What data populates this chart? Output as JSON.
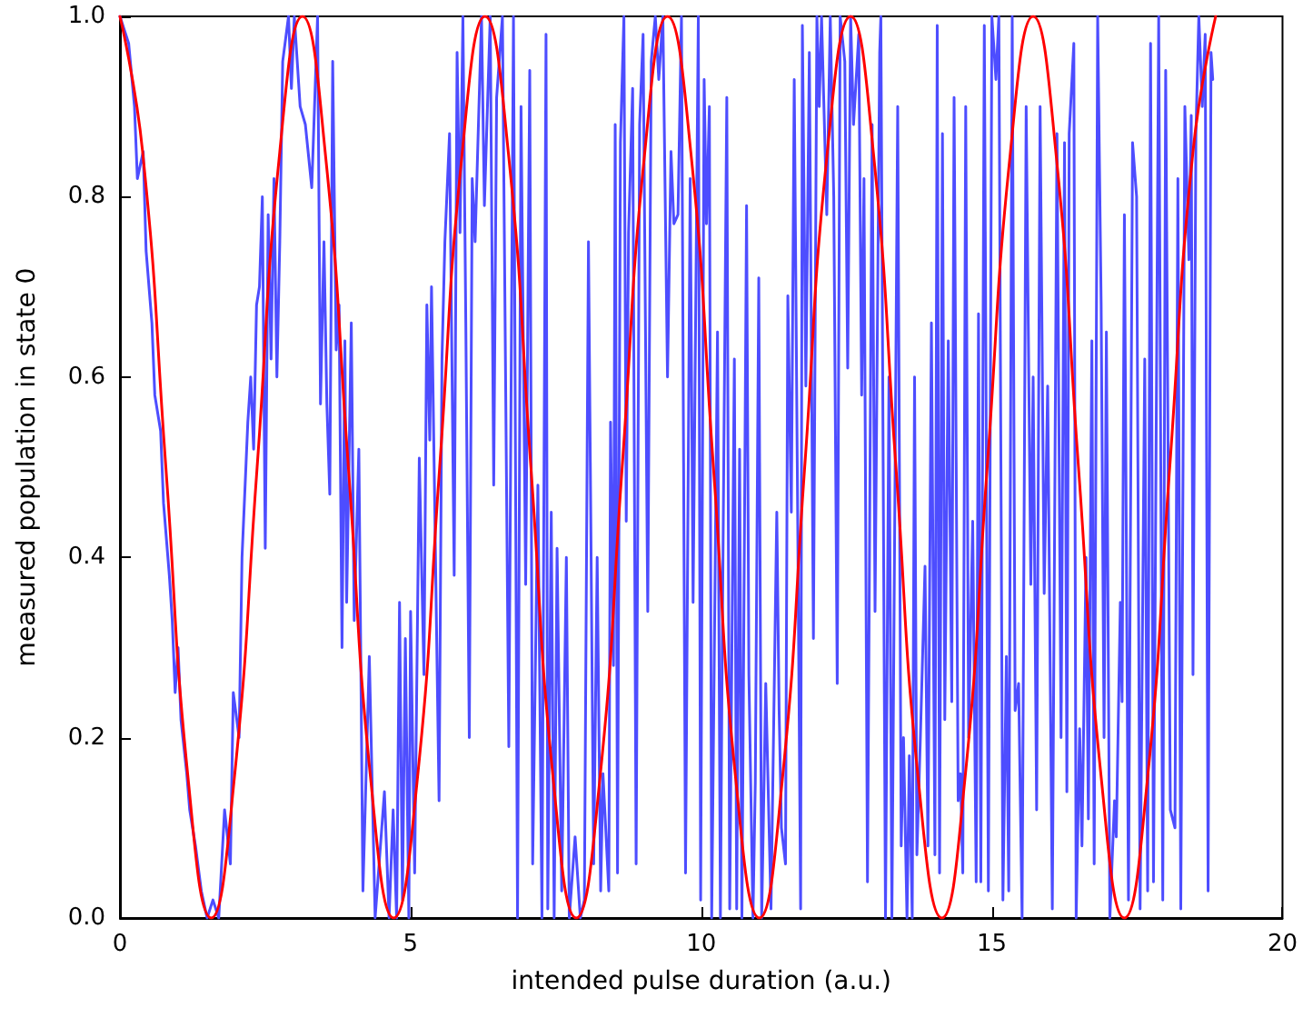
{
  "chart_data": {
    "type": "line",
    "xlabel": "intended pulse duration (a.u.)",
    "ylabel": "measured population in state 0",
    "xlim": [
      0,
      20
    ],
    "xticks": [
      0,
      5,
      10,
      15,
      20
    ],
    "ylim": [
      0,
      1
    ],
    "yticks": [
      {
        "value": 0,
        "label": "0.0"
      },
      {
        "value": 0.2,
        "label": "0.2"
      },
      {
        "value": 0.4,
        "label": "0.4"
      },
      {
        "value": 0.6,
        "label": "0.6"
      },
      {
        "value": 0.8,
        "label": "0.8"
      },
      {
        "value": 1,
        "label": "1.0"
      }
    ],
    "grid": false,
    "marker": "none",
    "line_style": "solid",
    "series": [
      {
        "color": "#4d4dff",
        "x": [
          0.0,
          0.15,
          0.25,
          0.3,
          0.4,
          0.45,
          0.55,
          0.6,
          0.7,
          0.75,
          0.85,
          0.9,
          0.95,
          1.0,
          1.05,
          1.15,
          1.2,
          1.3,
          1.4,
          1.5,
          1.6,
          1.7,
          1.8,
          1.9,
          1.95,
          2.05,
          2.1,
          2.2,
          2.25,
          2.3,
          2.35,
          2.4,
          2.45,
          2.5,
          2.55,
          2.6,
          2.65,
          2.7,
          2.75,
          2.8,
          2.9,
          2.95,
          3.0,
          3.1,
          3.19,
          3.3,
          3.4,
          3.45,
          3.51,
          3.56,
          3.61,
          3.66,
          3.72,
          3.77,
          3.82,
          3.87,
          3.9,
          3.98,
          4.03,
          4.11,
          4.18,
          4.29,
          4.39,
          4.55,
          4.63,
          4.7,
          4.76,
          4.81,
          4.86,
          4.91,
          4.97,
          5.0,
          5.07,
          5.15,
          5.23,
          5.28,
          5.33,
          5.36,
          5.49,
          5.54,
          5.59,
          5.67,
          5.75,
          5.8,
          5.85,
          5.9,
          5.95,
          6.01,
          6.06,
          6.11,
          6.22,
          6.27,
          6.37,
          6.43,
          6.48,
          6.58,
          6.69,
          6.77,
          6.84,
          6.9,
          6.98,
          7.05,
          7.1,
          7.19,
          7.26,
          7.33,
          7.36,
          7.42,
          7.47,
          7.52,
          7.6,
          7.68,
          7.73,
          7.83,
          7.92,
          7.99,
          8.06,
          8.15,
          8.21,
          8.27,
          8.31,
          8.41,
          8.44,
          8.49,
          8.52,
          8.56,
          8.61,
          8.67,
          8.71,
          8.75,
          8.82,
          8.88,
          8.94,
          9.0,
          9.08,
          9.14,
          9.21,
          9.27,
          9.34,
          9.42,
          9.48,
          9.53,
          9.6,
          9.66,
          9.73,
          9.81,
          9.86,
          9.95,
          9.99,
          10.05,
          10.09,
          10.14,
          10.18,
          10.28,
          10.33,
          10.36,
          10.44,
          10.49,
          10.57,
          10.61,
          10.66,
          10.7,
          10.78,
          10.82,
          10.89,
          10.93,
          10.99,
          11.04,
          11.11,
          11.2,
          11.3,
          11.34,
          11.38,
          11.45,
          11.49,
          11.55,
          11.6,
          11.66,
          11.71,
          11.74,
          11.8,
          11.86,
          11.93,
          11.99,
          12.03,
          12.07,
          12.16,
          12.22,
          12.28,
          12.34,
          12.39,
          12.47,
          12.52,
          12.57,
          12.62,
          12.71,
          12.76,
          12.8,
          12.86,
          12.94,
          12.99,
          13.07,
          13.09,
          13.17,
          13.23,
          13.28,
          13.38,
          13.44,
          13.48,
          13.54,
          13.58,
          13.63,
          13.67,
          13.71,
          13.77,
          13.85,
          13.9,
          13.96,
          14.02,
          14.06,
          14.1,
          14.15,
          14.19,
          14.25,
          14.31,
          14.35,
          14.42,
          14.46,
          14.5,
          14.55,
          14.6,
          14.67,
          14.73,
          14.77,
          14.81,
          14.87,
          14.94,
          15.0,
          15.07,
          15.12,
          15.19,
          15.25,
          15.29,
          15.35,
          15.4,
          15.46,
          15.52,
          15.59,
          15.67,
          15.71,
          15.77,
          15.83,
          15.9,
          15.96,
          16.04,
          16.12,
          16.19,
          16.25,
          16.29,
          16.33,
          16.41,
          16.45,
          16.51,
          16.55,
          16.62,
          16.66,
          16.72,
          16.76,
          16.82,
          16.88,
          16.93,
          16.97,
          17.03,
          17.11,
          17.14,
          17.21,
          17.24,
          17.28,
          17.35,
          17.42,
          17.49,
          17.55,
          17.63,
          17.68,
          17.73,
          17.78,
          17.87,
          17.94,
          17.99,
          18.07,
          18.15,
          18.2,
          18.25,
          18.32,
          18.39,
          18.43,
          18.46,
          18.51,
          18.56,
          18.62,
          18.67,
          18.72,
          18.77,
          18.8
        ],
        "values": [
          1.0,
          0.97,
          0.9,
          0.82,
          0.85,
          0.74,
          0.66,
          0.58,
          0.54,
          0.46,
          0.38,
          0.33,
          0.25,
          0.3,
          0.22,
          0.16,
          0.12,
          0.08,
          0.03,
          0.0,
          0.02,
          0.0,
          0.12,
          0.06,
          0.25,
          0.2,
          0.4,
          0.55,
          0.6,
          0.52,
          0.68,
          0.7,
          0.8,
          0.41,
          0.78,
          0.62,
          0.82,
          0.6,
          0.75,
          0.95,
          1.0,
          0.92,
          1.0,
          0.9,
          0.88,
          0.81,
          1.0,
          0.57,
          0.75,
          0.57,
          0.47,
          0.95,
          0.63,
          0.68,
          0.3,
          0.64,
          0.35,
          0.66,
          0.33,
          0.52,
          0.03,
          0.29,
          0.0,
          0.14,
          0.0,
          0.12,
          0.0,
          0.35,
          0.02,
          0.31,
          0.0,
          0.34,
          0.05,
          0.51,
          0.27,
          0.68,
          0.53,
          0.7,
          0.13,
          0.62,
          0.75,
          0.87,
          0.38,
          0.96,
          0.76,
          1.0,
          0.66,
          0.2,
          0.82,
          0.75,
          1.0,
          0.79,
          1.0,
          0.48,
          0.91,
          1.0,
          0.19,
          1.0,
          0.0,
          0.9,
          0.37,
          0.94,
          0.06,
          0.48,
          0.0,
          0.98,
          0.01,
          0.45,
          0.0,
          0.41,
          0.03,
          0.4,
          0.0,
          0.09,
          0.0,
          0.02,
          0.75,
          0.06,
          0.4,
          0.03,
          0.16,
          0.03,
          0.55,
          0.28,
          0.88,
          0.05,
          0.86,
          1.0,
          0.44,
          0.76,
          0.92,
          0.06,
          0.88,
          0.98,
          0.34,
          0.95,
          1.0,
          0.93,
          1.0,
          0.6,
          0.85,
          0.77,
          0.78,
          1.0,
          0.05,
          0.82,
          0.35,
          1.0,
          0.02,
          0.93,
          0.77,
          0.9,
          0.0,
          0.65,
          0.0,
          0.29,
          0.91,
          0.01,
          0.62,
          0.01,
          0.52,
          0.0,
          0.79,
          0.27,
          0.0,
          0.15,
          0.71,
          0.0,
          0.26,
          0.01,
          0.45,
          0.23,
          0.1,
          0.06,
          0.69,
          0.45,
          0.93,
          0.44,
          0.01,
          0.99,
          0.59,
          0.96,
          0.31,
          1.0,
          0.9,
          1.0,
          0.78,
          1.0,
          0.8,
          0.26,
          1.0,
          0.95,
          0.61,
          1.0,
          0.88,
          0.98,
          0.58,
          0.82,
          0.04,
          0.88,
          0.34,
          0.96,
          1.0,
          0.0,
          0.6,
          0.0,
          0.9,
          0.08,
          0.2,
          0.0,
          0.18,
          0.0,
          0.6,
          0.07,
          0.2,
          0.39,
          0.08,
          0.66,
          0.07,
          0.99,
          0.05,
          0.87,
          0.22,
          0.64,
          0.24,
          0.91,
          0.13,
          0.16,
          0.05,
          0.9,
          0.2,
          0.44,
          0.04,
          0.67,
          0.04,
          0.99,
          0.03,
          1.0,
          0.93,
          1.0,
          0.02,
          0.29,
          0.03,
          1.0,
          0.23,
          0.26,
          0.0,
          0.9,
          0.37,
          0.6,
          0.12,
          0.9,
          0.36,
          0.59,
          0.01,
          0.87,
          0.2,
          0.86,
          0.14,
          0.87,
          0.97,
          0.0,
          0.21,
          0.08,
          0.4,
          0.11,
          0.64,
          0.06,
          1.0,
          0.68,
          0.2,
          0.65,
          0.0,
          0.13,
          0.09,
          0.35,
          0.24,
          0.78,
          0.02,
          0.86,
          0.8,
          0.01,
          0.62,
          0.03,
          0.97,
          0.04,
          1.0,
          0.02,
          0.94,
          0.12,
          0.1,
          0.82,
          0.01,
          0.9,
          0.73,
          0.89,
          0.27,
          0.87,
          1.0,
          0.9,
          0.98,
          0.03,
          0.96,
          0.93
        ]
      },
      {
        "color": "#ff0000",
        "x": [
          0,
          0.39,
          0.79,
          1.18,
          1.57,
          1.96,
          2.36,
          2.75,
          3.14,
          3.53,
          3.93,
          4.32,
          4.71,
          5.11,
          5.5,
          5.89,
          6.28,
          6.68,
          7.07,
          7.46,
          7.85,
          8.25,
          8.64,
          9.03,
          9.42,
          9.82,
          10.21,
          10.6,
          11.0,
          11.39,
          11.78,
          12.17,
          12.57,
          12.96,
          13.35,
          13.74,
          14.14,
          14.53,
          14.92,
          15.32,
          15.71,
          16.1,
          16.49,
          16.89,
          17.28,
          17.67,
          18.06,
          18.46,
          18.85
        ],
        "values": [
          1,
          0.85,
          0.5,
          0.15,
          0,
          0.15,
          0.5,
          0.85,
          1,
          0.85,
          0.5,
          0.15,
          0,
          0.15,
          0.5,
          0.85,
          1,
          0.85,
          0.5,
          0.15,
          0,
          0.15,
          0.5,
          0.85,
          1,
          0.85,
          0.5,
          0.15,
          0,
          0.15,
          0.5,
          0.85,
          1,
          0.85,
          0.5,
          0.15,
          0,
          0.15,
          0.5,
          0.85,
          1,
          0.85,
          0.5,
          0.15,
          0,
          0.15,
          0.5,
          0.85,
          1
        ]
      }
    ]
  }
}
